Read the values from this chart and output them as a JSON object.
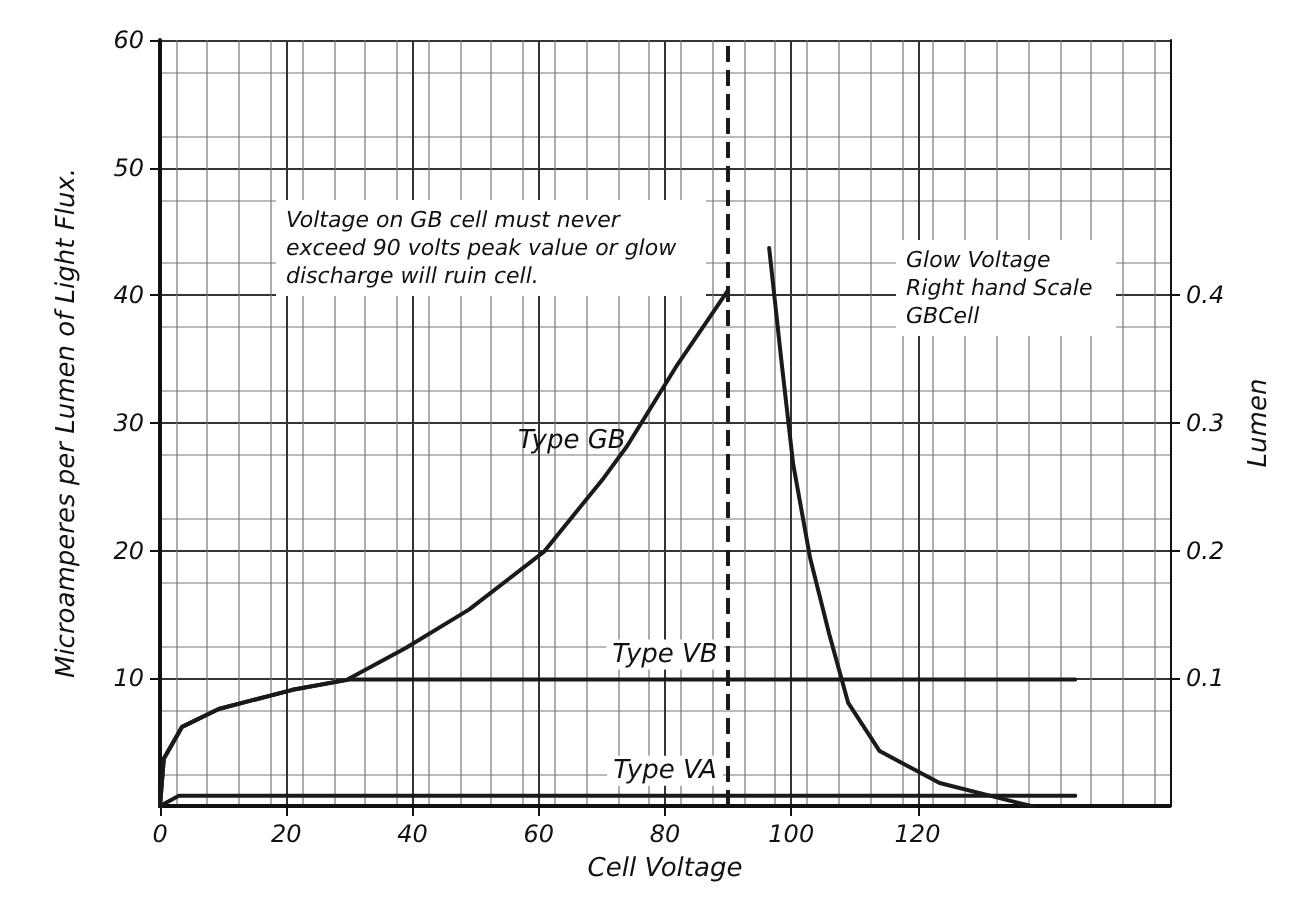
{
  "chart_data": {
    "type": "line",
    "xlabel": "Cell Voltage",
    "ylabel": "Microamperes per Lumen of Light Flux.",
    "y2label": "Lumen",
    "xlim": [
      0,
      160
    ],
    "xticks": [
      0,
      20,
      40,
      60,
      80,
      100,
      120
    ],
    "ylim": [
      0,
      60
    ],
    "yticks": [
      10,
      20,
      30,
      40,
      50,
      60
    ],
    "y2lim": [
      0,
      0.6
    ],
    "y2ticks": [
      0.1,
      0.2,
      0.3,
      0.4
    ],
    "grid": true,
    "legend": false,
    "marker": "none",
    "line_style": "solid",
    "series": [
      {
        "name": "Type GB",
        "color": "#1a1a1a",
        "x": [
          0,
          0.6,
          3.5,
          9.3,
          21,
          29.7,
          39,
          49,
          60.8,
          70.3,
          74,
          82,
          90
        ],
        "values": [
          0,
          3.7,
          6.2,
          7.6,
          9.1,
          9.9,
          12.4,
          15.4,
          19.9,
          25.7,
          28.2,
          34.6,
          40.4
        ]
      },
      {
        "name": "Type VB",
        "color": "#1a1a1a",
        "x": [
          0,
          0.6,
          3.5,
          9.3,
          21,
          30,
          80,
          145
        ],
        "values": [
          0,
          3.7,
          6.2,
          7.6,
          9.1,
          9.9,
          9.9,
          9.9
        ]
      },
      {
        "name": "Type VA",
        "color": "#1a1a1a",
        "x": [
          0,
          3,
          80,
          145
        ],
        "values": [
          0,
          0.8,
          0.8,
          0.8
        ]
      },
      {
        "color": "#1a1a1a",
        "axis": "y2",
        "x": [
          96.5,
          98.5,
          100.3,
          103,
          106,
          109,
          114,
          123.5,
          138
        ],
        "values": [
          0.437,
          0.346,
          0.268,
          0.194,
          0.135,
          0.081,
          0.043,
          0.018,
          0
        ]
      }
    ],
    "ref_lines": [
      {
        "axis": "x",
        "value": 90,
        "line_style": "dashed",
        "color": "#1a1a1a"
      }
    ],
    "annotations": [
      "Voltage on GB cell must never exceed 90 volts peak value or glow discharge will ruin cell.",
      "Glow Voltage Right hand Scale GBCell"
    ]
  }
}
